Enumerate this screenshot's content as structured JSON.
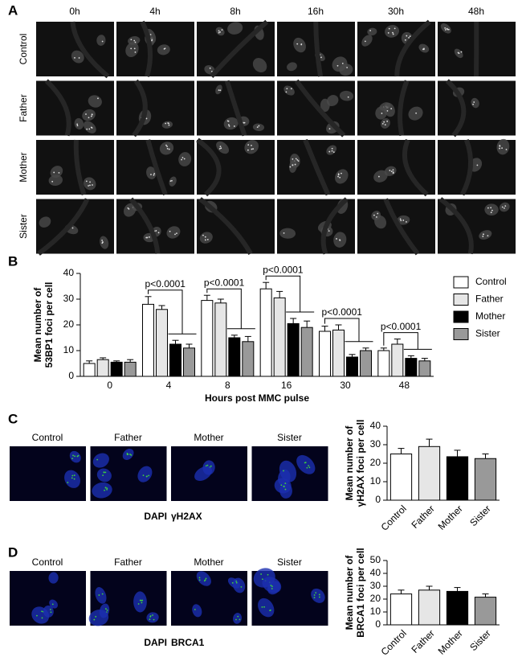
{
  "panel_a": {
    "label": "A",
    "columns": [
      "0h",
      "4h",
      "8h",
      "16h",
      "30h",
      "48h"
    ],
    "rows": [
      "Control",
      "Father",
      "Mother",
      "Sister"
    ]
  },
  "panel_c": {
    "label": "C",
    "images": [
      "Control",
      "Father",
      "Mother",
      "Sister"
    ],
    "stain": [
      "DAPI",
      "γH2AX"
    ]
  },
  "panel_d": {
    "label": "D",
    "images": [
      "Control",
      "Father",
      "Mother",
      "Sister"
    ],
    "stain": [
      "DAPI",
      "BRCA1"
    ]
  },
  "chart_data": [
    {
      "type": "grouped_bar",
      "label": "B",
      "y_label": [
        "Mean number of",
        "53BP1 foci per cell"
      ],
      "x_label": "Hours post MMC pulse",
      "categories": [
        "0",
        "4",
        "8",
        "16",
        "30",
        "48"
      ],
      "series": [
        {
          "name": "Control",
          "color": "#ffffff",
          "values": [
            5,
            28,
            29.5,
            34,
            17.5,
            10
          ],
          "errors": [
            1,
            3,
            2,
            2.5,
            2,
            1
          ]
        },
        {
          "name": "Father",
          "color": "#e6e6e6",
          "values": [
            6.5,
            26,
            28.5,
            30.5,
            18,
            12.5
          ],
          "errors": [
            0.7,
            1.5,
            1.5,
            2.5,
            2,
            2
          ]
        },
        {
          "name": "Mother",
          "color": "#000000",
          "values": [
            5.5,
            12.5,
            15,
            20.5,
            7.5,
            7
          ],
          "errors": [
            0.5,
            1.5,
            1,
            2,
            1,
            1
          ]
        },
        {
          "name": "Sister",
          "color": "#999999",
          "values": [
            5.5,
            11,
            13.5,
            19,
            10,
            6
          ],
          "errors": [
            1,
            1.5,
            2,
            2.5,
            1,
            1
          ]
        }
      ],
      "ylim": [
        0,
        40
      ],
      "yticks": [
        0,
        10,
        20,
        30,
        40
      ],
      "annotations": [
        "p<0.0001",
        "p<0.0001",
        "p<0.0001",
        "p<0.0001",
        "p<0.0001"
      ],
      "legend": "right"
    },
    {
      "type": "bar",
      "y_label": [
        "Mean number of",
        "γH2AX foci per cell"
      ],
      "categories": [
        "Control",
        "Father",
        "Mother",
        "Sister"
      ],
      "values": [
        25,
        29,
        23.5,
        22.5
      ],
      "errors": [
        3,
        4,
        3.5,
        2.5
      ],
      "colors": [
        "#ffffff",
        "#e6e6e6",
        "#000000",
        "#999999"
      ],
      "ylim": [
        0,
        40
      ],
      "yticks": [
        0,
        10,
        20,
        30,
        40
      ]
    },
    {
      "type": "bar",
      "y_label": [
        "Mean number of",
        "BRCA1 foci per cell"
      ],
      "categories": [
        "Control",
        "Father",
        "Mother",
        "Sister"
      ],
      "values": [
        24,
        27,
        26,
        21.5
      ],
      "errors": [
        3,
        3,
        3,
        2.5
      ],
      "colors": [
        "#ffffff",
        "#e6e6e6",
        "#000000",
        "#999999"
      ],
      "ylim": [
        0,
        50
      ],
      "yticks": [
        0,
        10,
        20,
        30,
        40,
        50
      ]
    }
  ]
}
